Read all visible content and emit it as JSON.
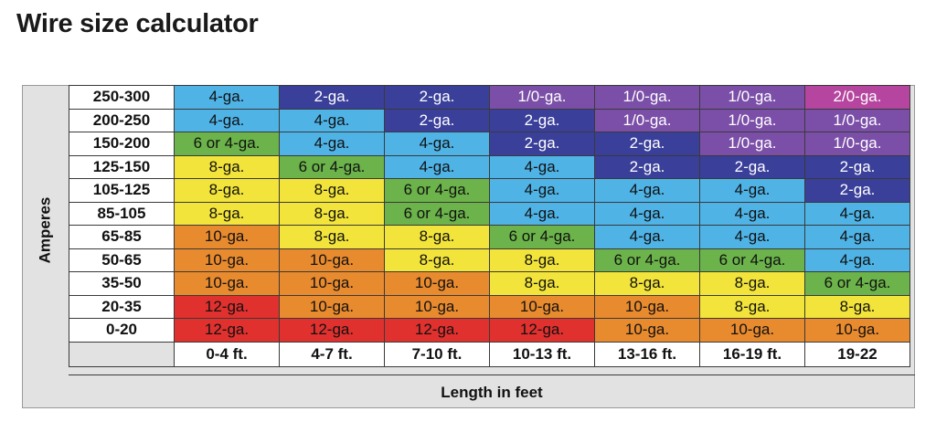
{
  "chart_data": {
    "type": "table",
    "title": "Wire size calculator",
    "ylabel": "Amperes",
    "xlabel": "Length in feet",
    "columns": [
      "0-4 ft.",
      "4-7 ft.",
      "7-10 ft.",
      "10-13 ft.",
      "13-16 ft.",
      "16-19 ft.",
      "19-22"
    ],
    "rows": [
      {
        "amps": "250-300",
        "cells": [
          "4-ga.",
          "2-ga.",
          "2-ga.",
          "1/0-ga.",
          "1/0-ga.",
          "1/0-ga.",
          "2/0-ga."
        ]
      },
      {
        "amps": "200-250",
        "cells": [
          "4-ga.",
          "4-ga.",
          "2-ga.",
          "2-ga.",
          "1/0-ga.",
          "1/0-ga.",
          "1/0-ga."
        ]
      },
      {
        "amps": "150-200",
        "cells": [
          "6 or 4-ga.",
          "4-ga.",
          "4-ga.",
          "2-ga.",
          "2-ga.",
          "1/0-ga.",
          "1/0-ga."
        ]
      },
      {
        "amps": "125-150",
        "cells": [
          "8-ga.",
          "6 or 4-ga.",
          "4-ga.",
          "4-ga.",
          "2-ga.",
          "2-ga.",
          "2-ga."
        ]
      },
      {
        "amps": "105-125",
        "cells": [
          "8-ga.",
          "8-ga.",
          "6 or 4-ga.",
          "4-ga.",
          "4-ga.",
          "4-ga.",
          "2-ga."
        ]
      },
      {
        "amps": "85-105",
        "cells": [
          "8-ga.",
          "8-ga.",
          "6 or 4-ga.",
          "4-ga.",
          "4-ga.",
          "4-ga.",
          "4-ga."
        ]
      },
      {
        "amps": "65-85",
        "cells": [
          "10-ga.",
          "8-ga.",
          "8-ga.",
          "6 or 4-ga.",
          "4-ga.",
          "4-ga.",
          "4-ga."
        ]
      },
      {
        "amps": "50-65",
        "cells": [
          "10-ga.",
          "10-ga.",
          "8-ga.",
          "8-ga.",
          "6 or 4-ga.",
          "6 or 4-ga.",
          "4-ga."
        ]
      },
      {
        "amps": "35-50",
        "cells": [
          "10-ga.",
          "10-ga.",
          "10-ga.",
          "8-ga.",
          "8-ga.",
          "8-ga.",
          "6 or 4-ga."
        ]
      },
      {
        "amps": "20-35",
        "cells": [
          "12-ga.",
          "10-ga.",
          "10-ga.",
          "10-ga.",
          "10-ga.",
          "8-ga.",
          "8-ga."
        ]
      },
      {
        "amps": "0-20",
        "cells": [
          "12-ga.",
          "12-ga.",
          "12-ga.",
          "12-ga.",
          "10-ga.",
          "10-ga.",
          "10-ga."
        ]
      }
    ],
    "gauge_colors": {
      "2/0-ga.": "#b5459e",
      "1/0-ga.": "#7b4fa8",
      "2-ga.": "#3a3f9a",
      "4-ga.": "#4fb3e6",
      "6 or 4-ga.": "#6bb34a",
      "8-ga.": "#f2e43a",
      "10-ga.": "#e88a2e",
      "12-ga.": "#e0312f"
    },
    "light_text_gauges": [
      "2/0-ga.",
      "1/0-ga.",
      "2-ga."
    ]
  }
}
